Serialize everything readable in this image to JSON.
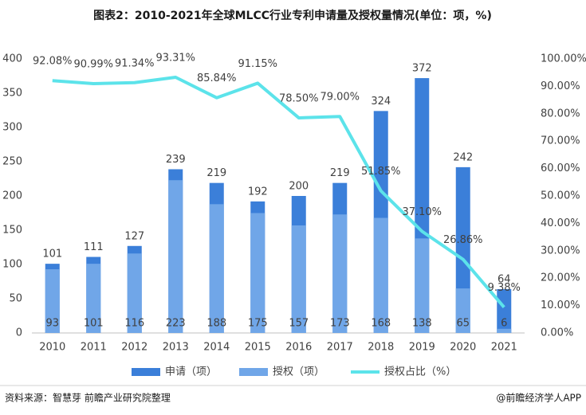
{
  "chart_data": {
    "type": "bar",
    "title": "图表2：2010-2021年全球MLCC行业专利申请量及授权量情况(单位：项，%)",
    "source": "资料来源：智慧芽 前瞻产业研究院整理",
    "brand": "@前瞻经济学人APP",
    "categories": [
      "2010",
      "2011",
      "2012",
      "2013",
      "2014",
      "2015",
      "2016",
      "2017",
      "2018",
      "2019",
      "2020",
      "2021"
    ],
    "series": [
      {
        "name": "申请（项）",
        "color": "#3b7fd9",
        "values": [
          101,
          111,
          127,
          239,
          219,
          192,
          200,
          219,
          324,
          372,
          242,
          64
        ]
      },
      {
        "name": "授权（项）",
        "color": "#70a6e8",
        "values": [
          93,
          101,
          116,
          223,
          188,
          175,
          157,
          173,
          168,
          138,
          65,
          6
        ]
      },
      {
        "name": "授权占比（%）",
        "color": "#5ce3ea",
        "type": "line",
        "axis": "y2",
        "values": [
          92.08,
          90.99,
          91.34,
          93.31,
          85.84,
          91.15,
          78.5,
          79.0,
          51.85,
          37.1,
          26.86,
          9.38
        ],
        "value_labels": [
          "92.08%",
          "90.99%",
          "91.34%",
          "93.31%",
          "85.84%",
          "91.15%",
          "78.50%",
          "79.00%",
          "51.85%",
          "37.10%",
          "26.86%",
          "9.38%"
        ]
      }
    ],
    "ylim": [
      0,
      400
    ],
    "yticks": [
      0,
      50,
      100,
      150,
      200,
      250,
      300,
      350,
      400
    ],
    "y2lim": [
      0,
      100
    ],
    "y2ticks": [
      {
        "value": 0,
        "label": "0.00%"
      },
      {
        "value": 10,
        "label": "10.00%"
      },
      {
        "value": 20,
        "label": "20.00%"
      },
      {
        "value": 30,
        "label": "30.00%"
      },
      {
        "value": 40,
        "label": "40.00%"
      },
      {
        "value": 50,
        "label": "50.00%"
      },
      {
        "value": 60,
        "label": "60.00%"
      },
      {
        "value": 70,
        "label": "70.00%"
      },
      {
        "value": 80,
        "label": "80.00%"
      },
      {
        "value": 90,
        "label": "90.00%"
      },
      {
        "value": 100,
        "label": "100.00%"
      }
    ],
    "grid": false,
    "legend": "bottom"
  }
}
